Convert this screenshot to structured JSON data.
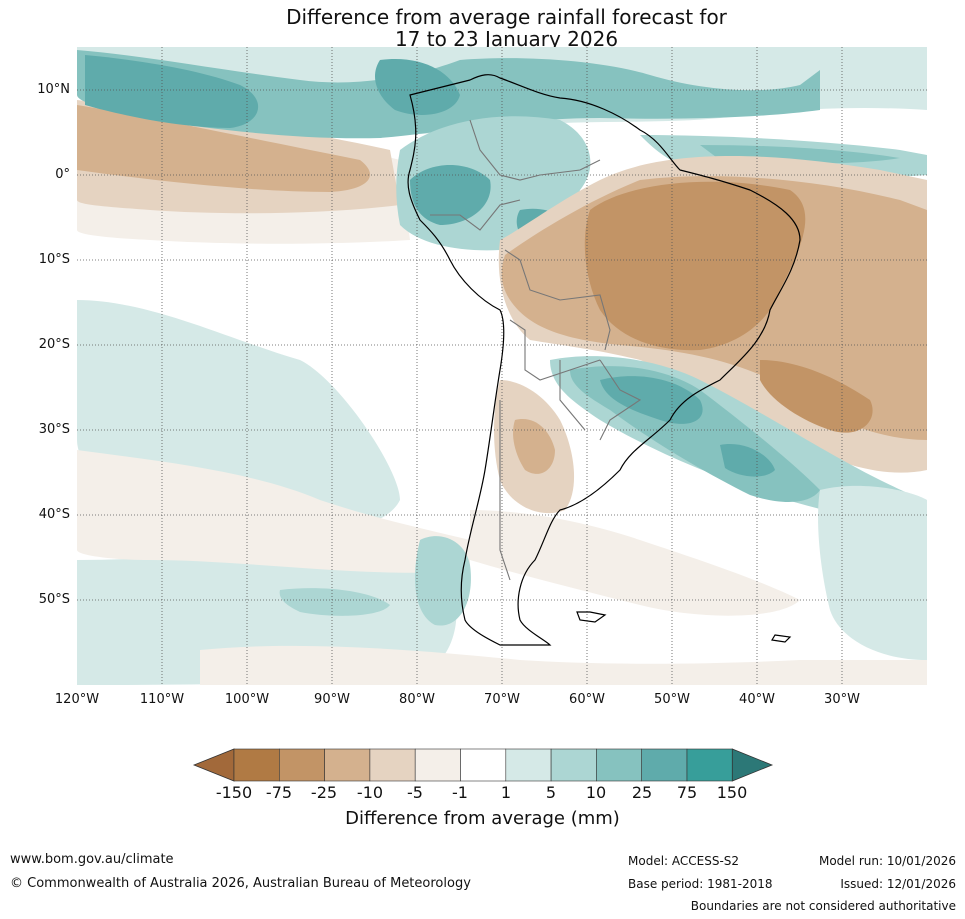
{
  "title": {
    "line1": "Difference from average rainfall forecast for",
    "line2": "17 to 23 January 2026"
  },
  "map": {
    "lat_labels": [
      "10°N",
      "0°",
      "10°S",
      "20°S",
      "30°S",
      "40°S",
      "50°S"
    ],
    "lon_labels": [
      "120°W",
      "110°W",
      "100°W",
      "90°W",
      "80°W",
      "70°W",
      "60°W",
      "50°W",
      "40°W",
      "30°W"
    ]
  },
  "colorbar": {
    "title": "Difference from average (mm)",
    "tick_labels": [
      "-150",
      "-75",
      "-25",
      "-10",
      "-5",
      "-1",
      "1",
      "5",
      "10",
      "25",
      "75",
      "150"
    ],
    "colors": [
      "#a2693a",
      "#b07a44",
      "#c29466",
      "#d4b18e",
      "#e5d3c1",
      "#f4efe9",
      "#ffffff",
      "#d5e9e7",
      "#acd6d3",
      "#86c2bf",
      "#5fabab",
      "#379e9a",
      "#2c7877"
    ]
  },
  "footer": {
    "website": "www.bom.gov.au/climate",
    "copyright": "© Commonwealth of Australia 2026, Australian Bureau of Meteorology",
    "model": "Model: ACCESS-S2",
    "base_period": "Base period: 1981-2018",
    "model_run": "Model run: 10/01/2026",
    "issued": "Issued: 12/01/2026",
    "disclaimer": "Boundaries are not considered authoritative"
  }
}
